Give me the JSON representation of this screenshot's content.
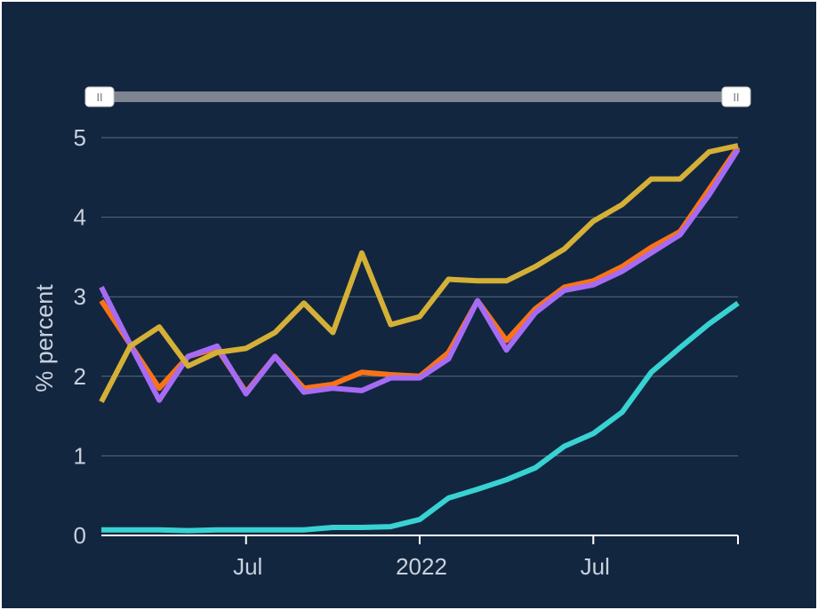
{
  "colors": {
    "background": "#132640",
    "grid": "#5b6b80",
    "axis": "#ffffff",
    "text": "#c9d1dc",
    "slider_track": "#7d8590",
    "slider_handle": "#ffffff"
  },
  "range_slider": {
    "left_handle_glyph": "II",
    "right_handle_glyph": "II",
    "selected_range": [
      0,
      1
    ]
  },
  "chart_data": {
    "type": "line",
    "title": "",
    "xlabel": "",
    "ylabel": "% percent",
    "ylim": [
      0,
      5
    ],
    "yticks": [
      "0",
      "1",
      "2",
      "3",
      "4",
      "5"
    ],
    "xlim": [
      "2021-02",
      "2022-12"
    ],
    "x": [
      "2021-02",
      "2021-03",
      "2021-04",
      "2021-05",
      "2021-06",
      "2021-07",
      "2021-08",
      "2021-09",
      "2021-10",
      "2021-11",
      "2021-12",
      "2022-01",
      "2022-02",
      "2022-03",
      "2022-04",
      "2022-05",
      "2022-06",
      "2022-07",
      "2022-08",
      "2022-09",
      "2022-10",
      "2022-11",
      "2022-12"
    ],
    "xticks": [
      {
        "x": "2021-07",
        "label": "Jul"
      },
      {
        "x": "2022-01",
        "label": "2022"
      },
      {
        "x": "2022-07",
        "label": "Jul"
      }
    ],
    "grid": true,
    "legend": "none",
    "series": [
      {
        "color": "#f97316",
        "values": [
          2.95,
          2.4,
          1.85,
          2.25,
          2.35,
          1.8,
          2.25,
          1.85,
          1.9,
          2.05,
          2.02,
          2.0,
          2.3,
          2.95,
          2.45,
          2.85,
          3.12,
          3.2,
          3.38,
          3.62,
          3.82,
          4.35,
          4.88
        ]
      },
      {
        "color": "#a66bf5",
        "values": [
          3.12,
          2.4,
          1.7,
          2.25,
          2.38,
          1.78,
          2.25,
          1.8,
          1.85,
          1.82,
          1.98,
          1.98,
          2.22,
          2.95,
          2.33,
          2.8,
          3.08,
          3.15,
          3.32,
          3.55,
          3.78,
          4.28,
          4.85
        ]
      },
      {
        "color": "#d4b036",
        "values": [
          1.68,
          2.38,
          2.62,
          2.13,
          2.3,
          2.35,
          2.55,
          2.92,
          2.55,
          3.55,
          2.65,
          2.75,
          3.22,
          3.2,
          3.2,
          3.38,
          3.6,
          3.95,
          4.16,
          4.48,
          4.48,
          4.82,
          4.9
        ]
      },
      {
        "color": "#38d2d2",
        "values": [
          0.07,
          0.07,
          0.07,
          0.06,
          0.07,
          0.07,
          0.07,
          0.07,
          0.1,
          0.1,
          0.11,
          0.2,
          0.47,
          0.58,
          0.7,
          0.85,
          1.12,
          1.28,
          1.55,
          2.05,
          2.36,
          2.66,
          2.92
        ]
      }
    ]
  }
}
